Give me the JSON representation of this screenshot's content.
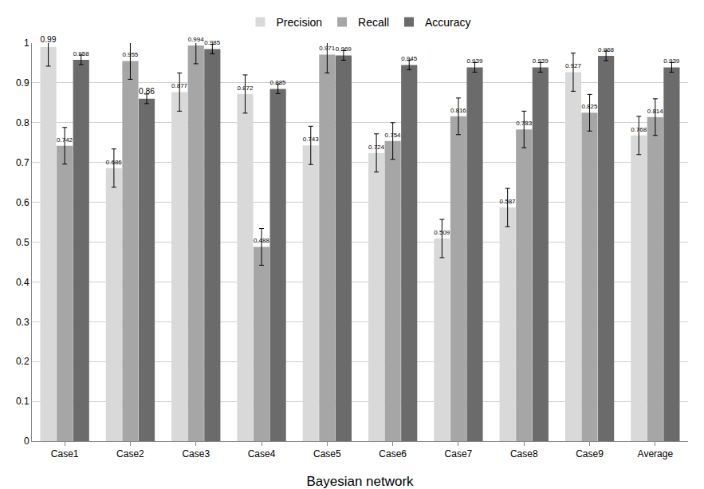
{
  "chart_data": {
    "type": "bar",
    "x_label": "Bayesian network",
    "categories": [
      "Case1",
      "Case2",
      "Case3",
      "Case4",
      "Case5",
      "Case6",
      "Case7",
      "Case8",
      "Case9",
      "Average"
    ],
    "series": [
      {
        "name": "Precision",
        "color": "#d9d9d9",
        "values": [
          0.99,
          0.686,
          0.877,
          0.872,
          0.743,
          0.724,
          0.509,
          0.587,
          0.927,
          0.768
        ],
        "errors": [
          0.048,
          0.048,
          0.048,
          0.048,
          0.048,
          0.048,
          0.048,
          0.048,
          0.048,
          0.048
        ]
      },
      {
        "name": "Recall",
        "color": "#a6a6a6",
        "values": [
          0.742,
          0.955,
          0.994,
          0.488,
          0.971,
          0.754,
          0.816,
          0.783,
          0.825,
          0.814
        ],
        "errors": [
          0.046,
          0.046,
          0.046,
          0.046,
          0.046,
          0.046,
          0.046,
          0.046,
          0.046,
          0.046
        ]
      },
      {
        "name": "Accuracy",
        "color": "#6b6b6b",
        "values": [
          0.958,
          0.86,
          0.985,
          0.885,
          0.969,
          0.945,
          0.939,
          0.939,
          0.968,
          0.939
        ],
        "errors": [
          0.012,
          0.012,
          0.012,
          0.012,
          0.012,
          0.012,
          0.012,
          0.012,
          0.012,
          0.012
        ]
      }
    ],
    "ylim": [
      0,
      1
    ],
    "yticks": [
      0,
      0.1,
      0.2,
      0.3,
      0.4,
      0.5,
      0.6,
      0.7,
      0.8,
      0.9,
      1
    ],
    "grid": true,
    "legend": "top",
    "data_labels": true
  }
}
